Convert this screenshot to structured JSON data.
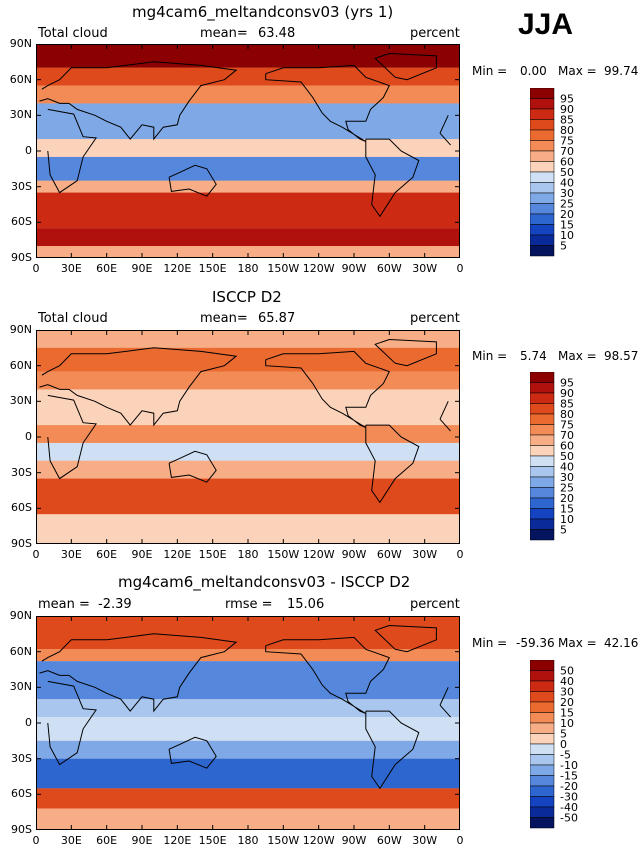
{
  "header": {
    "season": "JJA"
  },
  "chart_data": [
    {
      "type": "heatmap",
      "title": "mg4cam6_meltandconsv03 (yrs 1)",
      "left_label": "Total cloud",
      "mean_label": "mean=",
      "mean_value": "63.48",
      "units": "percent",
      "min_label": "Min =",
      "min_value": "0.00",
      "max_label": "Max =",
      "max_value": "99.74",
      "mean": 63.48,
      "min": 0.0,
      "max": 99.74,
      "colorbar_levels": [
        "95",
        "90",
        "85",
        "80",
        "75",
        "70",
        "60",
        "50",
        "40",
        "30",
        "25",
        "20",
        "15",
        "10",
        "5"
      ],
      "colorbar_colors": [
        "#8b0000",
        "#b0110c",
        "#cc2a12",
        "#de4a1c",
        "#ea6a30",
        "#f28b55",
        "#f7ae86",
        "#fbd3bb",
        "#cfe0f5",
        "#a8c6ee",
        "#7ea9e6",
        "#5588dc",
        "#2e66cf",
        "#1444bf",
        "#0a2a9a",
        "#05145e"
      ],
      "yticks": [
        "90N",
        "60N",
        "30N",
        "0",
        "30S",
        "60S",
        "90S"
      ],
      "xticks": [
        "0",
        "30E",
        "60E",
        "90E",
        "120E",
        "150E",
        "180",
        "150W",
        "120W",
        "90W",
        "60W",
        "30W",
        "0"
      ]
    },
    {
      "type": "heatmap",
      "title": "ISCCP D2",
      "left_label": "Total cloud",
      "mean_label": "mean=",
      "mean_value": "65.87",
      "units": "percent",
      "min_label": "Min =",
      "min_value": "5.74",
      "max_label": "Max =",
      "max_value": "98.57",
      "mean": 65.87,
      "min": 5.74,
      "max": 98.57,
      "colorbar_levels": [
        "95",
        "90",
        "85",
        "80",
        "75",
        "70",
        "60",
        "50",
        "40",
        "30",
        "25",
        "20",
        "15",
        "10",
        "5"
      ],
      "colorbar_colors": [
        "#8b0000",
        "#b0110c",
        "#cc2a12",
        "#de4a1c",
        "#ea6a30",
        "#f28b55",
        "#f7ae86",
        "#fbd3bb",
        "#cfe0f5",
        "#a8c6ee",
        "#7ea9e6",
        "#5588dc",
        "#2e66cf",
        "#1444bf",
        "#0a2a9a",
        "#05145e"
      ],
      "yticks": [
        "90N",
        "60N",
        "30N",
        "0",
        "30S",
        "60S",
        "90S"
      ],
      "xticks": [
        "0",
        "30E",
        "60E",
        "90E",
        "120E",
        "150E",
        "180",
        "150W",
        "120W",
        "90W",
        "60W",
        "30W",
        "0"
      ]
    },
    {
      "type": "heatmap",
      "title": "mg4cam6_meltandconsv03 - ISCCP D2",
      "left_label": "mean =",
      "mean_label": "-2.39",
      "mean_value": "",
      "rmse_label": "rmse =",
      "rmse_value": "15.06",
      "units": "percent",
      "min_label": "Min =",
      "min_value": "-59.36",
      "max_label": "Max =",
      "max_value": "42.16",
      "mean": -2.39,
      "rmse": 15.06,
      "min": -59.36,
      "max": 42.16,
      "colorbar_levels": [
        "50",
        "40",
        "30",
        "20",
        "15",
        "10",
        "5",
        "0",
        "-5",
        "-10",
        "-15",
        "-20",
        "-30",
        "-40",
        "-50"
      ],
      "colorbar_colors": [
        "#8b0000",
        "#b0110c",
        "#cc2a12",
        "#de4a1c",
        "#ea6a30",
        "#f28b55",
        "#f7ae86",
        "#fbd3bb",
        "#cfe0f5",
        "#a8c6ee",
        "#7ea9e6",
        "#5588dc",
        "#2e66cf",
        "#1444bf",
        "#0a2a9a",
        "#05145e"
      ],
      "yticks": [
        "90N",
        "60N",
        "30N",
        "0",
        "30S",
        "60S",
        "90S"
      ],
      "xticks": [
        "0",
        "30E",
        "60E",
        "90E",
        "120E",
        "150E",
        "180",
        "150W",
        "120W",
        "90W",
        "60W",
        "30W",
        "0"
      ]
    }
  ]
}
